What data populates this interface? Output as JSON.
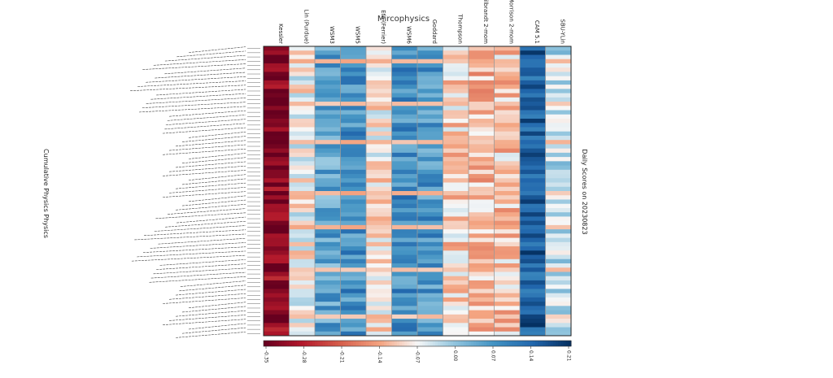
{
  "chart_data": {
    "type": "heatmap",
    "title": "Mircophysics",
    "xlabel": "",
    "ylabel": "Cumulative Physics Physics",
    "right_label": "Daily Scores on 20230823",
    "columns": [
      "Kessler",
      "Lin (Purdue)",
      "WSM3",
      "WSM5",
      "Eta (Ferrier)",
      "WSM6",
      "Goddard",
      "Thompson",
      "Milbrandt 2-mom",
      "Morrison 2-mom",
      "CAM 5.1",
      "SBU-YLin"
    ],
    "n_rows": 68,
    "colorbar": {
      "ticks": [
        "-0.35",
        "-0.28",
        "-0.21",
        "-0.14",
        "-0.07",
        "0.00",
        "0.07",
        "0.14",
        "0.21"
      ],
      "vmin": -0.35,
      "vmax": 0.21,
      "cmap": "RdBu"
    },
    "column_means": [
      -0.32,
      -0.07,
      0.05,
      0.08,
      -0.08,
      0.08,
      0.07,
      -0.1,
      -0.12,
      -0.11,
      0.15,
      -0.03
    ],
    "special_rows": [
      3,
      13,
      22,
      34,
      42,
      52,
      63
    ]
  }
}
